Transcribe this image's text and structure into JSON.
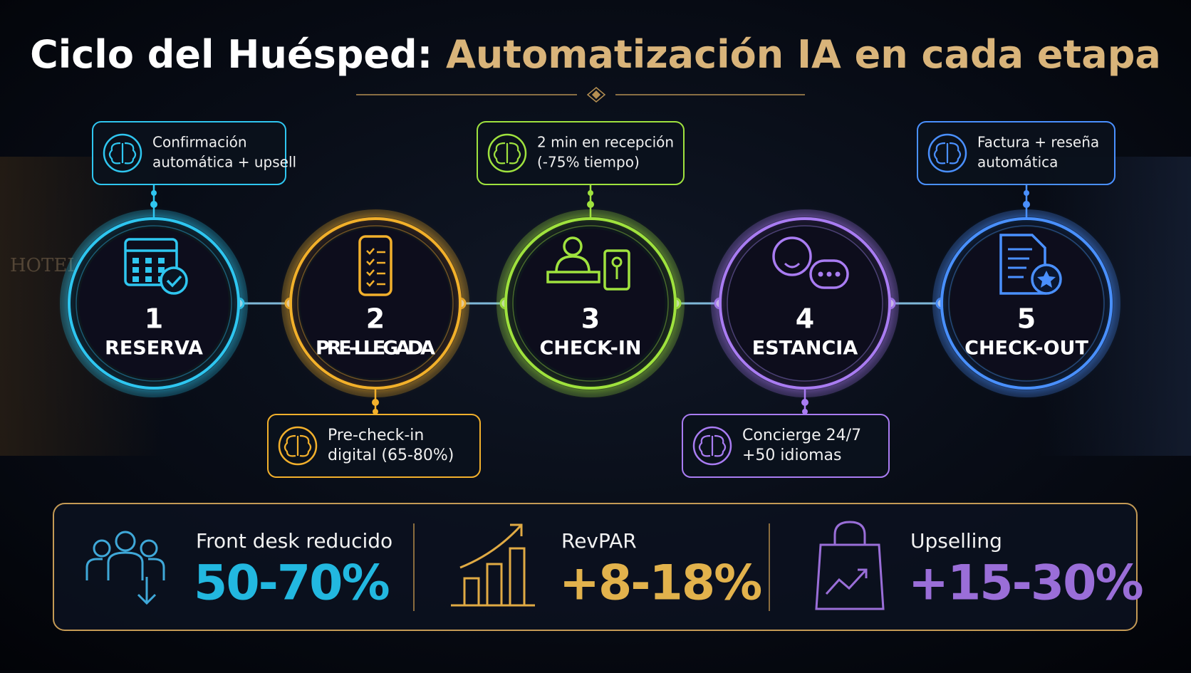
{
  "background_sign": "HOTEL",
  "header": {
    "title_lead": "Ciclo del Huésped:",
    "title_accent": "Automatización IA en cada etapa"
  },
  "stages": [
    {
      "number": 1,
      "label": "RESERVA",
      "color": "#2fc6f0",
      "note": [
        "Confirmación",
        "automática + upsell"
      ]
    },
    {
      "number": 2,
      "label": "PRE-LLEGADA",
      "color": "#f2b02c",
      "note": [
        "Pre-check-in",
        "digital (65-80%)"
      ]
    },
    {
      "number": 3,
      "label": "CHECK-IN",
      "color": "#9fe23e",
      "note": [
        "2 min en recepción",
        "(-75% tiempo)"
      ]
    },
    {
      "number": 4,
      "label": "ESTANCIA",
      "color": "#a97cf2",
      "note": [
        "Concierge 24/7",
        "+50 idiomas"
      ]
    },
    {
      "number": 5,
      "label": "CHECK-OUT",
      "color": "#4a90ff",
      "note": [
        "Factura + reseña",
        "automática"
      ]
    }
  ],
  "metrics": [
    {
      "label": "Front desk reducido",
      "value": "50-70%",
      "color": "#22b8e0"
    },
    {
      "label": "RevPAR",
      "value": "+8-18%",
      "color": "#e2b24c"
    },
    {
      "label": "Upselling",
      "value": "+15-30%",
      "color": "#9a6ed8"
    }
  ]
}
